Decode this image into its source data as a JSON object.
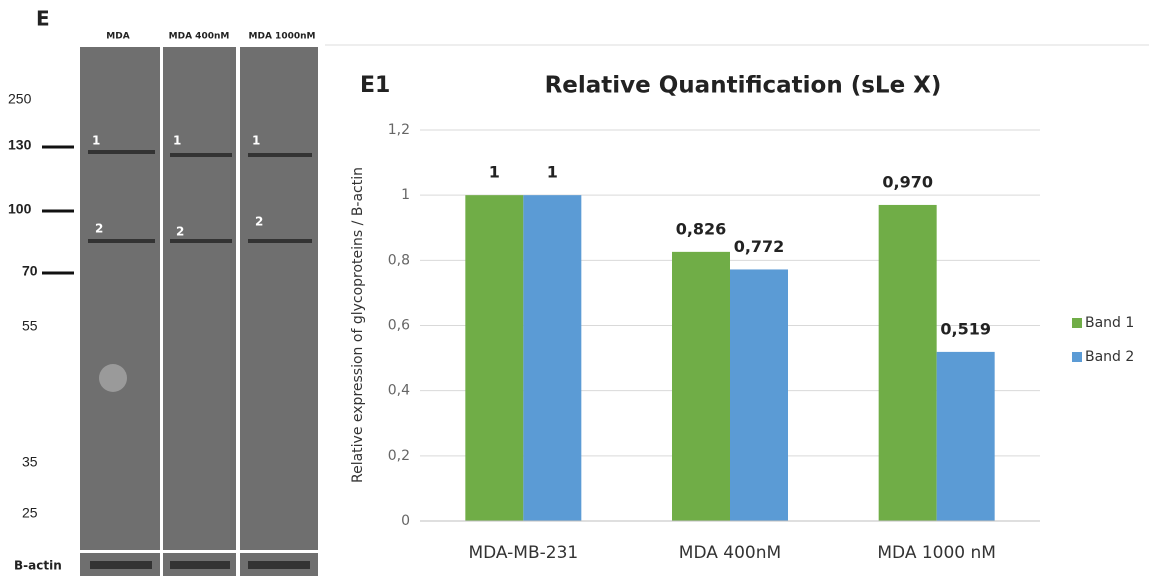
{
  "blot": {
    "panel_label": "E",
    "lanes": [
      "MDA",
      "MDA 400nM",
      "MDA 1000nM"
    ],
    "markers": [
      "250",
      "130",
      "100",
      "70",
      "55",
      "35",
      "25"
    ],
    "band_labels": [
      "1",
      "2"
    ],
    "loading_control": "B-actin"
  },
  "chart_data": {
    "type": "bar",
    "panel_label": "E1",
    "title": "Relative Quantification (sLe X)",
    "y_label": "Relative expression of glycoproteins / B-actin",
    "categories": [
      "MDA-MB-231",
      "MDA 400nM",
      "MDA 1000 nM"
    ],
    "series": [
      {
        "name": "Band 1",
        "color": "#70ad47",
        "values": [
          1,
          0.826,
          0.97
        ],
        "value_labels": [
          "1",
          "0,826",
          "0,970"
        ]
      },
      {
        "name": "Band 2",
        "color": "#5b9bd5",
        "values": [
          1,
          0.772,
          0.519
        ],
        "value_labels": [
          "1",
          "0,772",
          "0,519"
        ]
      }
    ],
    "ylim": [
      0,
      1.2
    ],
    "yticks": [
      0,
      {
        "value": 0.2,
        "label": "0,2"
      },
      {
        "value": 0.4,
        "label": "0,4"
      },
      {
        "value": 0.6,
        "label": "0,6"
      },
      {
        "value": 0.8,
        "label": "0,8"
      },
      1,
      {
        "value": 1.2,
        "label": "1,2"
      }
    ],
    "grid": true,
    "legend": "right"
  }
}
